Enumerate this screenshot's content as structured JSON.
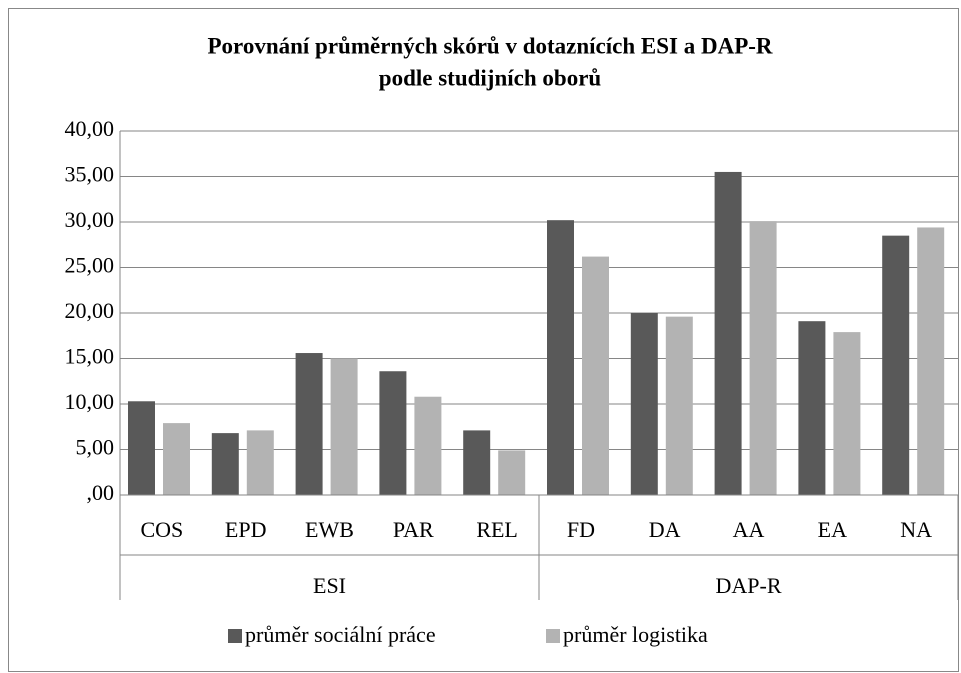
{
  "chart_data": {
    "type": "bar",
    "title": [
      "Porovnání průměrných skórů v dotaznících ESI a DAP-R",
      "podle studijních oborů"
    ],
    "categories": [
      "COS",
      "EPD",
      "EWB",
      "PAR",
      "REL",
      "FD",
      "DA",
      "AA",
      "EA",
      "NA"
    ],
    "category_groups": [
      "ESI",
      "ESI",
      "ESI",
      "ESI",
      "ESI",
      "DAP-R",
      "DAP-R",
      "DAP-R",
      "DAP-R",
      "DAP-R"
    ],
    "series": [
      {
        "name": "průměr sociální práce",
        "color": "#595959",
        "values": [
          10.3,
          6.8,
          15.6,
          13.6,
          7.1,
          30.2,
          20.0,
          35.5,
          19.1,
          28.5
        ]
      },
      {
        "name": "průměr logistika",
        "color": "#b3b3b3",
        "values": [
          7.9,
          7.1,
          15.0,
          10.8,
          4.9,
          26.2,
          19.6,
          30.1,
          17.9,
          29.4
        ]
      }
    ],
    "ylim": [
      0,
      40
    ],
    "yticks": [
      {
        "value": 0,
        "label": ",00"
      },
      {
        "value": 5,
        "label": "5,00"
      },
      {
        "value": 10,
        "label": "10,00"
      },
      {
        "value": 15,
        "label": "15,00"
      },
      {
        "value": 20,
        "label": "20,00"
      },
      {
        "value": 25,
        "label": "25,00"
      },
      {
        "value": 30,
        "label": "30,00"
      },
      {
        "value": 35,
        "label": "35,00"
      },
      {
        "value": 40,
        "label": "40,00"
      }
    ],
    "grid": true,
    "legend": "bottom"
  }
}
